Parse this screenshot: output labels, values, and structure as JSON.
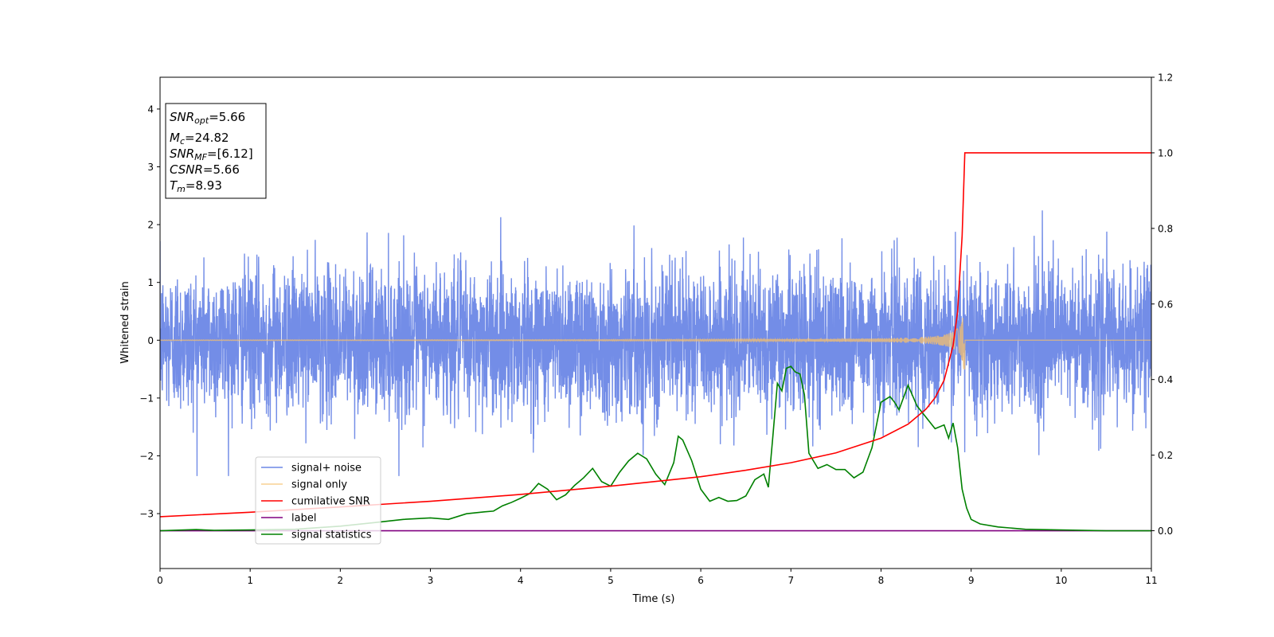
{
  "chart_data": {
    "type": "line",
    "xlabel": "Time (s)",
    "ylabel_left": "Whitened strain",
    "xlim": [
      0,
      11
    ],
    "ylim_left": [
      -3.95,
      4.55
    ],
    "ylim_right": [
      -0.1,
      1.2
    ],
    "x_ticks": [
      0,
      1,
      2,
      3,
      4,
      5,
      6,
      7,
      8,
      9,
      10,
      11
    ],
    "y_ticks_left": [
      -3,
      -2,
      -1,
      0,
      1,
      2,
      3,
      4
    ],
    "y_ticks_right": [
      0.0,
      0.2,
      0.4,
      0.6,
      0.8,
      1.0,
      1.2
    ],
    "grid": false,
    "legend_position": "lower-left",
    "annotation": {
      "lines": [
        {
          "sym": "SNR",
          "sub": "opt",
          "value": "=5.66"
        },
        {
          "sym": "M",
          "sub": "c",
          "value": "=24.82"
        },
        {
          "sym": "SNR",
          "sub": "MF",
          "value": "=[6.12]"
        },
        {
          "sym": "CSNR",
          "sub": "",
          "value": "=5.66"
        },
        {
          "sym": "T",
          "sub": "m",
          "value": "=8.93"
        }
      ]
    },
    "series": [
      {
        "name": "signal+ noise",
        "axis": "left",
        "color": "#6b87e6",
        "description_visual": "dense noise band roughly between -1.5 and 1.5 with spikes to about +/-2.3",
        "envelope": {
          "typical_amplitude": 1.4,
          "peak_amplitude": 2.6,
          "noise_std": 0.62
        }
      },
      {
        "name": "signal only",
        "axis": "left",
        "color": "#f5c06e",
        "chirp": {
          "t_merge": 8.93,
          "peak_amplitude": 0.75
        }
      },
      {
        "name": "cumilative SNR",
        "axis": "right",
        "color": "#ff0000",
        "x": [
          0,
          1,
          2,
          3,
          4,
          5,
          6,
          6.5,
          7,
          7.5,
          8,
          8.3,
          8.5,
          8.6,
          8.7,
          8.8,
          8.85,
          8.9,
          8.93,
          9,
          10,
          11
        ],
        "y": [
          0.037,
          0.049,
          0.063,
          0.078,
          0.096,
          0.118,
          0.143,
          0.16,
          0.18,
          0.206,
          0.245,
          0.282,
          0.322,
          0.352,
          0.398,
          0.49,
          0.58,
          0.78,
          1.0,
          1.0,
          1.0,
          1.0
        ]
      },
      {
        "name": "label",
        "axis": "right",
        "color": "#800080",
        "x": [
          0,
          11
        ],
        "y": [
          0.0,
          0.0
        ]
      },
      {
        "name": "signal statistics",
        "axis": "right",
        "color": "#008000",
        "x": [
          0,
          0.4,
          0.6,
          1.0,
          1.5,
          2.0,
          2.4,
          2.7,
          3.0,
          3.2,
          3.4,
          3.6,
          3.7,
          3.8,
          3.9,
          4.0,
          4.1,
          4.2,
          4.3,
          4.4,
          4.5,
          4.6,
          4.7,
          4.8,
          4.9,
          5.0,
          5.1,
          5.2,
          5.3,
          5.4,
          5.5,
          5.6,
          5.7,
          5.75,
          5.8,
          5.9,
          6.0,
          6.1,
          6.2,
          6.3,
          6.4,
          6.5,
          6.6,
          6.7,
          6.75,
          6.8,
          6.85,
          6.9,
          6.95,
          7.0,
          7.05,
          7.1,
          7.15,
          7.2,
          7.3,
          7.4,
          7.5,
          7.6,
          7.7,
          7.8,
          7.9,
          8.0,
          8.1,
          8.15,
          8.2,
          8.3,
          8.4,
          8.5,
          8.6,
          8.7,
          8.75,
          8.8,
          8.85,
          8.9,
          8.95,
          9.0,
          9.1,
          9.3,
          9.6,
          10.0,
          10.5,
          11.0
        ],
        "y": [
          0.0,
          0.003,
          0.001,
          0.002,
          0.004,
          0.012,
          0.022,
          0.03,
          0.034,
          0.03,
          0.045,
          0.05,
          0.052,
          0.066,
          0.075,
          0.086,
          0.098,
          0.125,
          0.11,
          0.082,
          0.095,
          0.12,
          0.14,
          0.165,
          0.13,
          0.118,
          0.155,
          0.185,
          0.205,
          0.19,
          0.15,
          0.122,
          0.18,
          0.25,
          0.24,
          0.185,
          0.11,
          0.078,
          0.088,
          0.078,
          0.08,
          0.092,
          0.135,
          0.15,
          0.115,
          0.25,
          0.39,
          0.37,
          0.43,
          0.435,
          0.42,
          0.415,
          0.36,
          0.205,
          0.165,
          0.175,
          0.162,
          0.162,
          0.14,
          0.155,
          0.22,
          0.34,
          0.355,
          0.34,
          0.32,
          0.385,
          0.33,
          0.3,
          0.27,
          0.28,
          0.245,
          0.285,
          0.22,
          0.11,
          0.06,
          0.03,
          0.018,
          0.01,
          0.004,
          0.002,
          0.0,
          0.0
        ]
      }
    ]
  }
}
